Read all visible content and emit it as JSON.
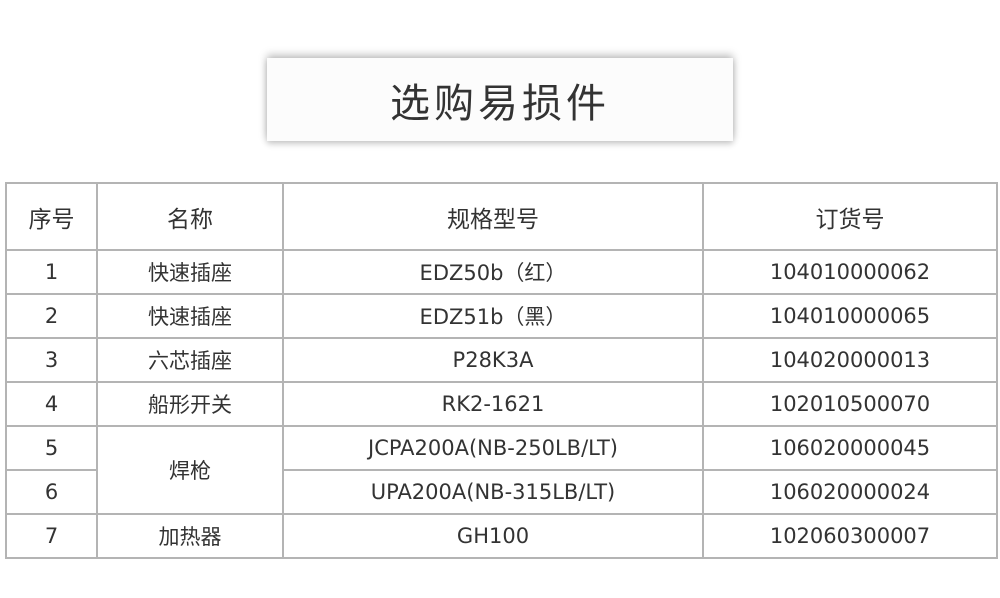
{
  "title": "选购易损件",
  "table": {
    "headers": [
      "序号",
      "名称",
      "规格型号",
      "订货号"
    ],
    "rows": [
      {
        "no": "1",
        "name": "快速插座",
        "model": "EDZ50b（红）",
        "order": "104010000062"
      },
      {
        "no": "2",
        "name": "快速插座",
        "model": "EDZ51b（黑）",
        "order": "104010000065"
      },
      {
        "no": "3",
        "name": "六芯插座",
        "model": "P28K3A",
        "order": "104020000013"
      },
      {
        "no": "4",
        "name": "船形开关",
        "model": "RK2-1621",
        "order": "102010500070"
      },
      {
        "no": "5",
        "name": "焊枪",
        "model": "JCPA200A(NB-250LB/LT)",
        "order": "106020000045"
      },
      {
        "no": "6",
        "name": "焊枪",
        "model": "UPA200A(NB-315LB/LT)",
        "order": "106020000024"
      },
      {
        "no": "7",
        "name": "加热器",
        "model": "GH100",
        "order": "102060300007"
      }
    ]
  }
}
